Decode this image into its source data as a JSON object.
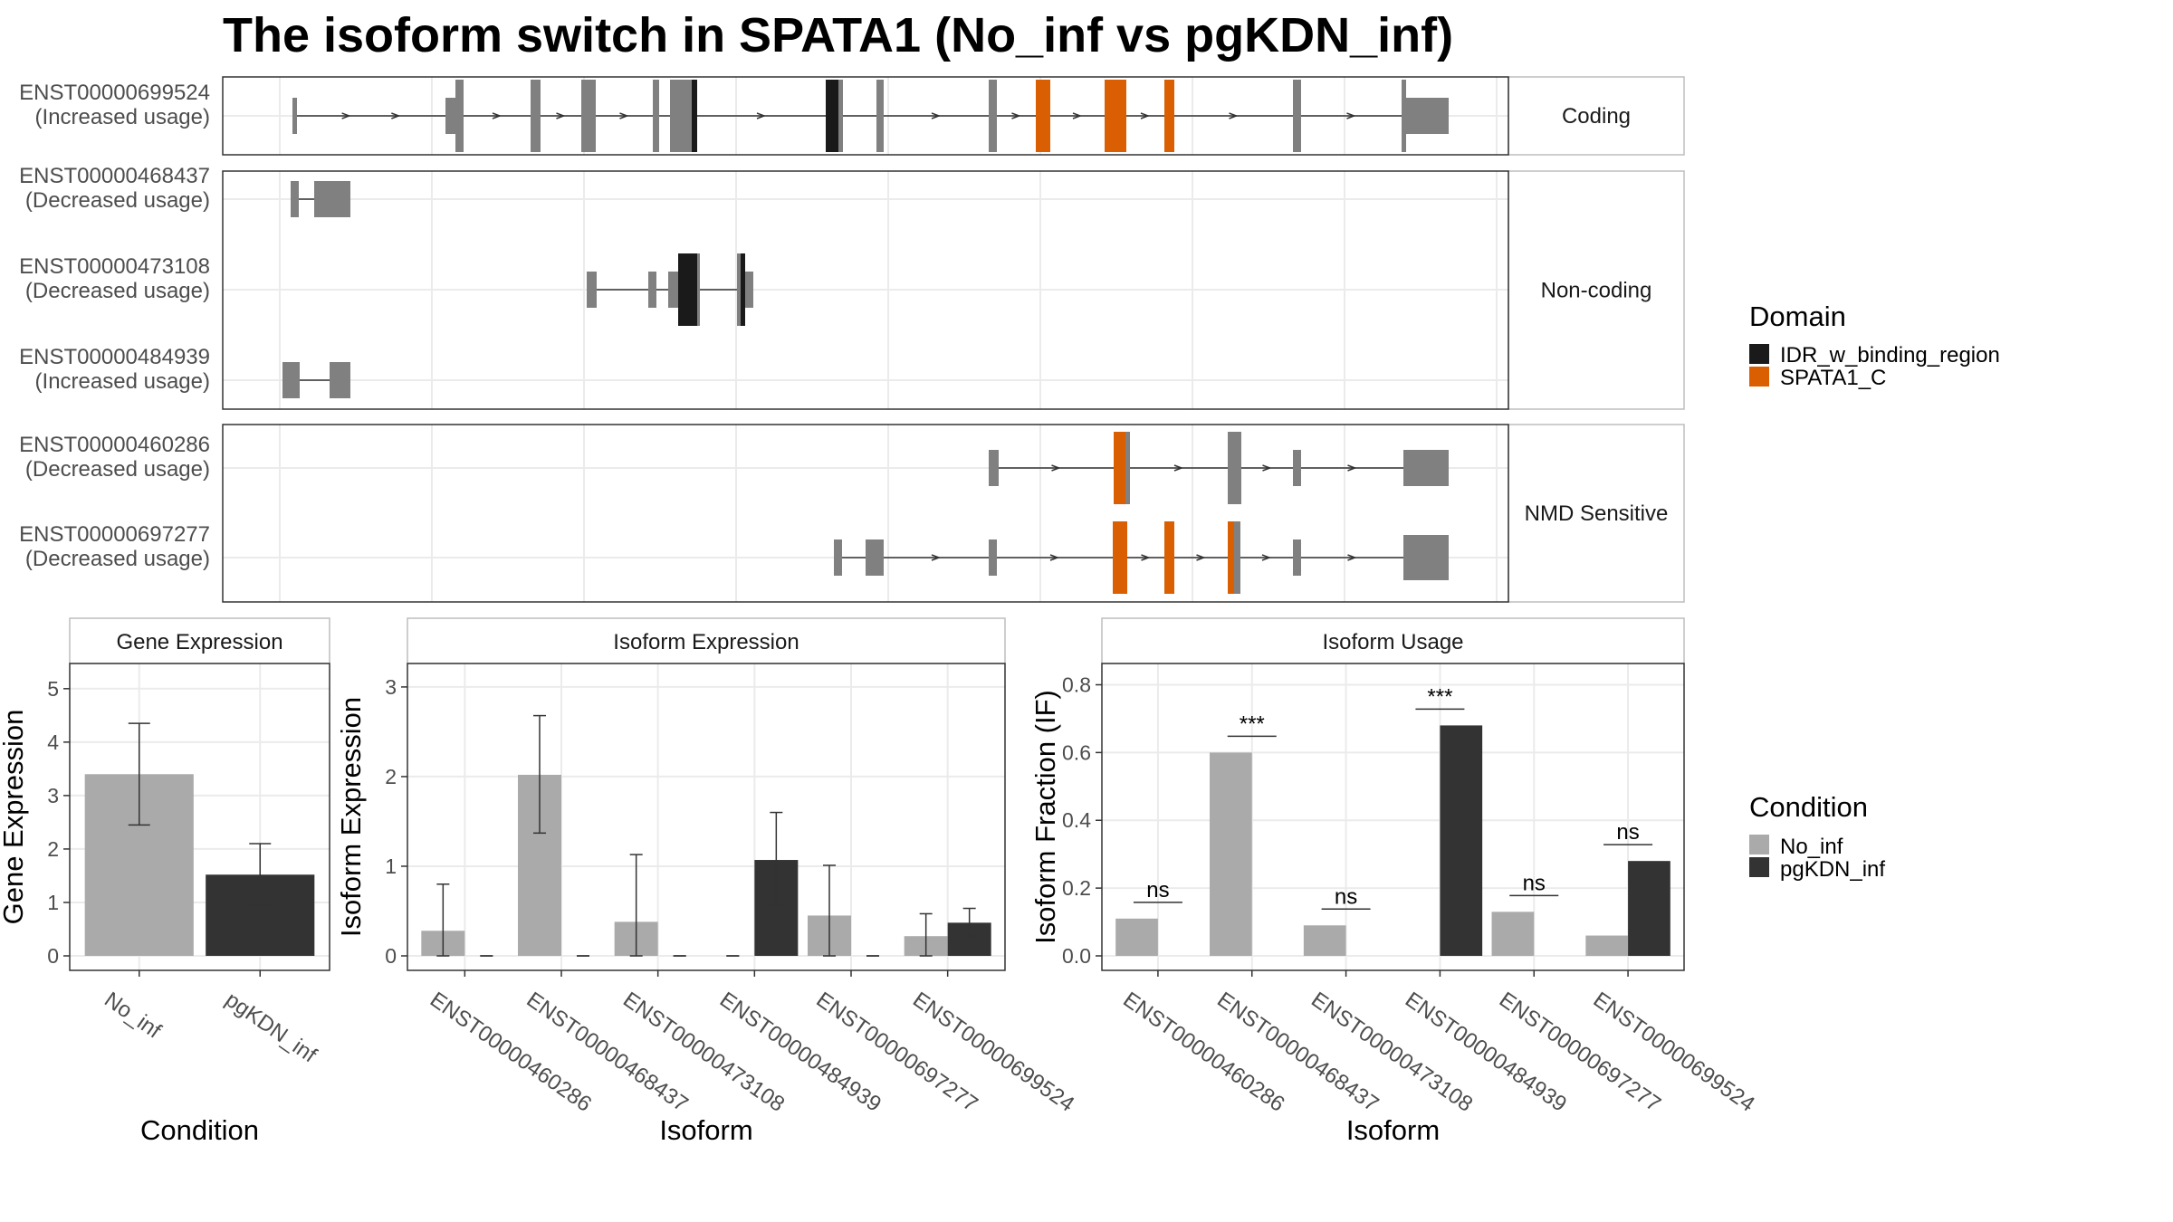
{
  "title": "The isoform switch in SPATA1 (No_inf vs pgKDN_inf)",
  "colors": {
    "exon": "#808080",
    "IDR_w_binding_region": "#1a1a1a",
    "SPATA1_C": "#d95f02",
    "No_inf": "#aaaaaa",
    "pgKDN_inf": "#333333"
  },
  "structure": {
    "facets": [
      "Coding",
      "Non-coding",
      "NMD Sensitive"
    ],
    "transcripts": [
      {
        "id": "ENST00000699524",
        "usage": "(Increased usage)",
        "facet": "Coding"
      },
      {
        "id": "ENST00000468437",
        "usage": "(Decreased usage)",
        "facet": "Non-coding"
      },
      {
        "id": "ENST00000473108",
        "usage": "(Decreased usage)",
        "facet": "Non-coding"
      },
      {
        "id": "ENST00000484939",
        "usage": "(Increased usage)",
        "facet": "Non-coding"
      },
      {
        "id": "ENST00000460286",
        "usage": "(Decreased usage)",
        "facet": "NMD Sensitive"
      },
      {
        "id": "ENST00000697277",
        "usage": "(Decreased usage)",
        "facet": "NMD Sensitive"
      }
    ],
    "domain_legend": {
      "title": "Domain",
      "items": [
        "IDR_w_binding_region",
        "SPATA1_C"
      ]
    }
  },
  "chart_data": [
    {
      "type": "bar",
      "panel": "Gene Expression",
      "xlabel": "Condition",
      "ylabel": "Gene Expression",
      "ylim": [
        0,
        5.2
      ],
      "yticks": [
        0,
        1,
        2,
        3,
        4,
        5
      ],
      "categories": [
        "No_inf",
        "pgKDN_inf"
      ],
      "values": [
        3.4,
        1.52
      ],
      "err_low": [
        2.45,
        0.95
      ],
      "err_high": [
        4.35,
        2.1
      ]
    },
    {
      "type": "bar",
      "panel": "Isoform Expression",
      "xlabel": "Isoform",
      "ylabel": "Isoform Expression",
      "ylim": [
        0,
        3.1
      ],
      "yticks": [
        0,
        1,
        2,
        3
      ],
      "categories": [
        "ENST00000460286",
        "ENST00000468437",
        "ENST00000473108",
        "ENST00000484939",
        "ENST00000697277",
        "ENST00000699524"
      ],
      "series": [
        {
          "name": "No_inf",
          "values": [
            0.28,
            2.02,
            0.38,
            0,
            0.45,
            0.22
          ],
          "err_low": [
            0,
            1.37,
            0,
            0,
            0,
            0
          ],
          "err_high": [
            0.8,
            2.68,
            1.13,
            0,
            1.01,
            0.47
          ]
        },
        {
          "name": "pgKDN_inf",
          "values": [
            0,
            0,
            0,
            1.07,
            0,
            0.37
          ],
          "err_low": [
            0,
            0,
            0,
            0.55,
            0,
            0.22
          ],
          "err_high": [
            0,
            0,
            0,
            1.6,
            0,
            0.53
          ]
        }
      ]
    },
    {
      "type": "bar",
      "panel": "Isoform Usage",
      "xlabel": "Isoform",
      "ylabel": "Isoform Fraction (IF)",
      "ylim": [
        0,
        0.82
      ],
      "yticks": [
        0.0,
        0.2,
        0.4,
        0.6,
        0.8
      ],
      "ytick_labels": [
        "0.0",
        "0.2",
        "0.4",
        "0.6",
        "0.8"
      ],
      "categories": [
        "ENST00000460286",
        "ENST00000468437",
        "ENST00000473108",
        "ENST00000484939",
        "ENST00000697277",
        "ENST00000699524"
      ],
      "series": [
        {
          "name": "No_inf",
          "values": [
            0.11,
            0.6,
            0.09,
            0,
            0.13,
            0.06
          ]
        },
        {
          "name": "pgKDN_inf",
          "values": [
            0,
            0,
            0,
            0.68,
            0,
            0.28
          ]
        }
      ],
      "significance": [
        "ns",
        "***",
        "ns",
        "***",
        "ns",
        "ns"
      ]
    }
  ],
  "condition_legend": {
    "title": "Condition",
    "items": [
      "No_inf",
      "pgKDN_inf"
    ]
  }
}
